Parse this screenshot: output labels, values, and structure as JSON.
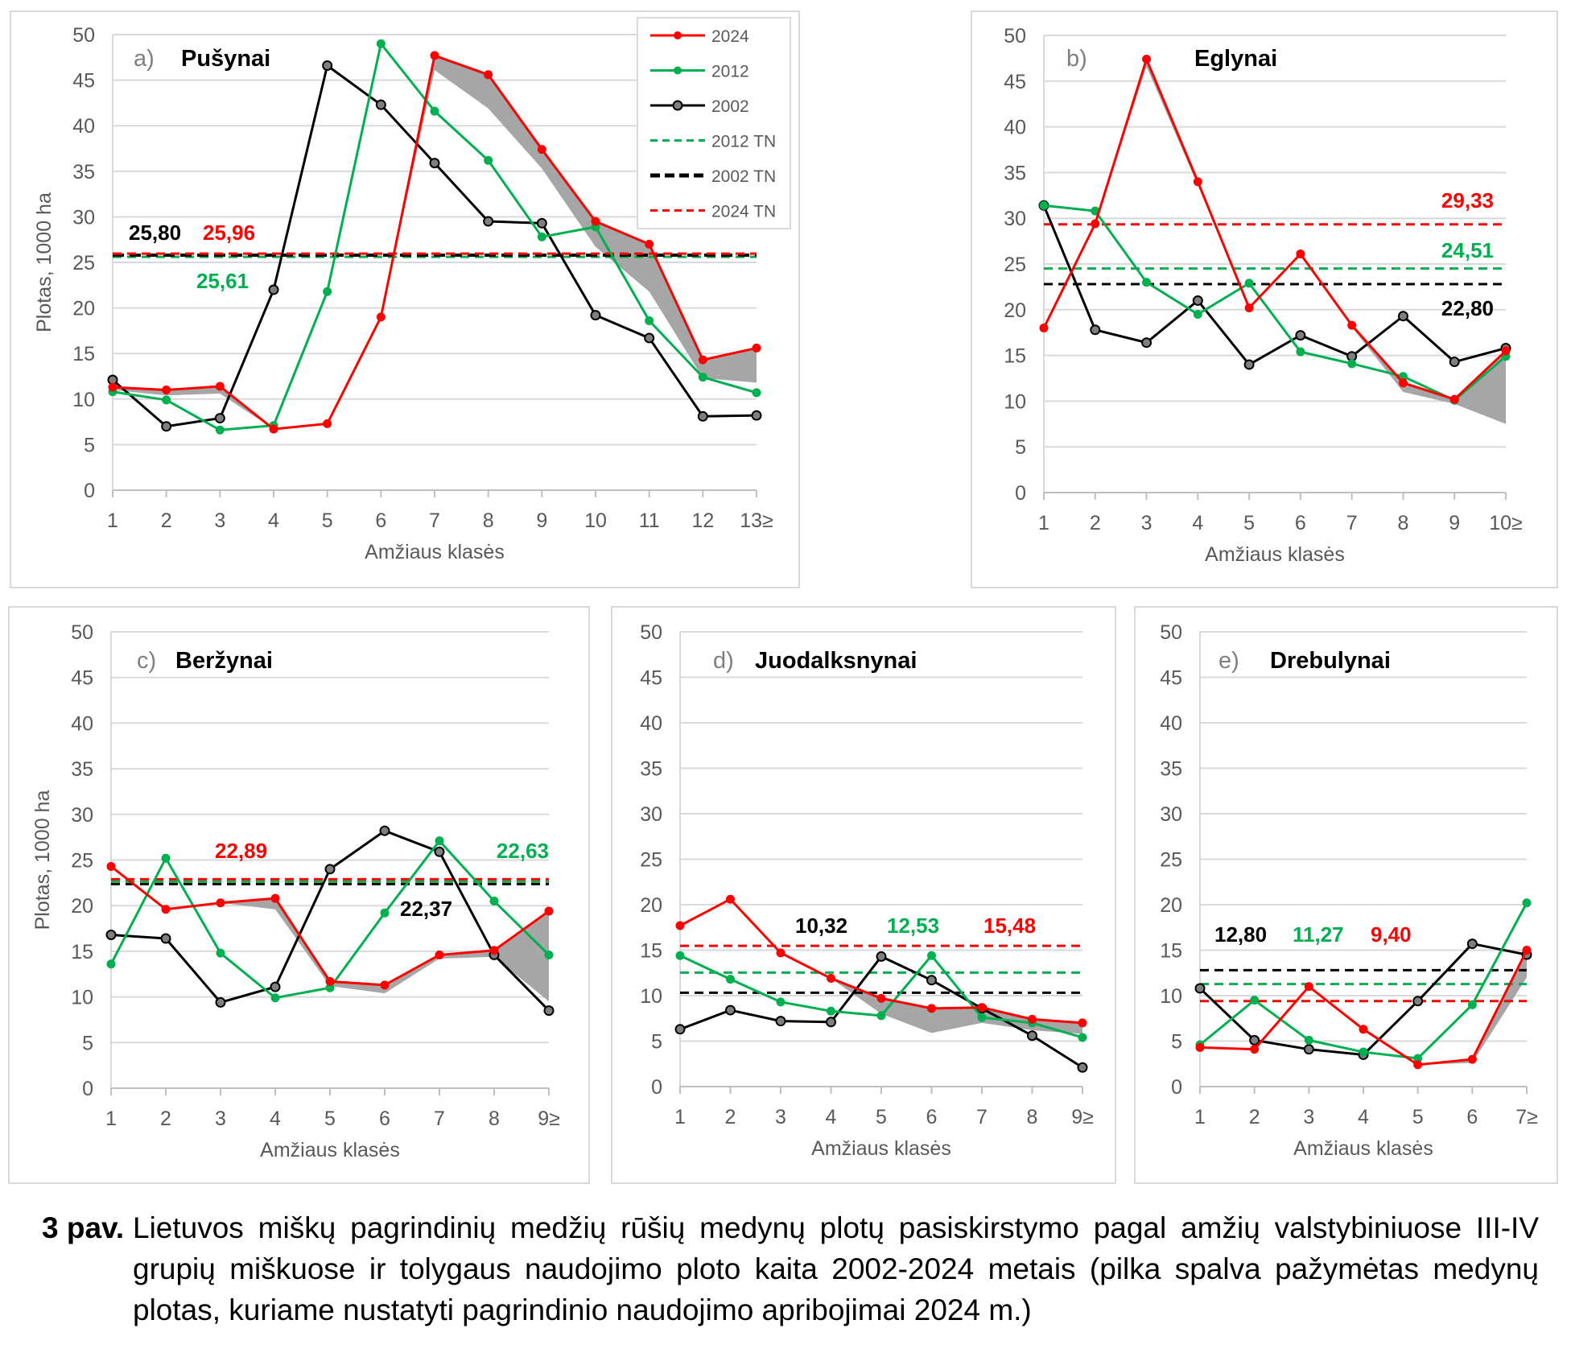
{
  "figure": {
    "caption_number": "3 pav.",
    "caption_text": "Lietuvos miškų pagrindinių medžių rūšių medynų plotų pasiskirstymo pagal amžių valstybiniuose III-IV grupių miškuose ir tolygaus naudojimo ploto kaita 2002-2024 metais (pilka spalva pažymėtas medynų plotas, kuriame nustatyti pagrindinio naudojimo apribojimai 2024 m.)"
  },
  "colors": {
    "s2024": "#ff0000",
    "s2012": "#00b050",
    "s2002": "#000000",
    "restricted_area": "#a6a6a6",
    "grid": "#d9d9d9",
    "axis_text": "#595959",
    "panel_letter": "#7f7f7f"
  },
  "legend": [
    {
      "key": "s2024",
      "label": "2024",
      "style": "solid-dot"
    },
    {
      "key": "s2012",
      "label": "2012",
      "style": "solid-dot"
    },
    {
      "key": "s2002",
      "label": "2002",
      "style": "solid-ring"
    },
    {
      "key": "s2012",
      "label": "2012 TN",
      "style": "dash-thin"
    },
    {
      "key": "s2002",
      "label": "2002 TN",
      "style": "dash-thick"
    },
    {
      "key": "s2024",
      "label": "2024 TN",
      "style": "dash-thin"
    }
  ],
  "chart_data": [
    {
      "id": "a",
      "type": "line",
      "letter": "a)",
      "title": "Pušynai",
      "xlabel": "Amžiaus klasės",
      "ylabel": "Plotas, 1000 ha",
      "ylim": [
        0,
        50
      ],
      "yticks": [
        0,
        5,
        10,
        15,
        20,
        25,
        30,
        35,
        40,
        45,
        50
      ],
      "grid": true,
      "legend": "top-right",
      "categories": [
        "1",
        "2",
        "3",
        "4",
        "5",
        "6",
        "7",
        "8",
        "9",
        "10",
        "11",
        "12",
        "13≥"
      ],
      "series": [
        {
          "key": "s2024",
          "name": "2024",
          "values": [
            11.3,
            11.0,
            11.4,
            6.7,
            7.3,
            19.0,
            47.7,
            45.6,
            37.4,
            29.5,
            27.0,
            14.3,
            15.6
          ]
        },
        {
          "key": "s2012",
          "name": "2012",
          "values": [
            10.8,
            9.9,
            6.6,
            7.1,
            21.8,
            49.0,
            41.6,
            36.2,
            27.8,
            28.9,
            18.6,
            12.4,
            10.7
          ]
        },
        {
          "key": "s2002",
          "name": "2002",
          "values": [
            12.1,
            7.0,
            7.9,
            22.0,
            46.6,
            42.3,
            35.9,
            29.5,
            29.3,
            19.2,
            16.7,
            8.1,
            8.2
          ]
        }
      ],
      "restricted_lower_2024": [
        11.0,
        10.4,
        10.6,
        6.7,
        7.3,
        19.0,
        46.1,
        41.9,
        35.3,
        26.7,
        21.8,
        12.3,
        11.8
      ],
      "tn_lines": [
        {
          "key": "s2012",
          "name": "2012 TN",
          "value": 25.61,
          "label": "25,61"
        },
        {
          "key": "s2002",
          "name": "2002 TN",
          "value": 25.8,
          "label": "25,80"
        },
        {
          "key": "s2024",
          "name": "2024 TN",
          "value": 25.96,
          "label": "25,96"
        }
      ]
    },
    {
      "id": "b",
      "type": "line",
      "letter": "b)",
      "title": "Eglynai",
      "xlabel": "Amžiaus klasės",
      "ylabel": "",
      "ylim": [
        0,
        50
      ],
      "yticks": [
        0,
        5,
        10,
        15,
        20,
        25,
        30,
        35,
        40,
        45,
        50
      ],
      "grid": true,
      "categories": [
        "1",
        "2",
        "3",
        "4",
        "5",
        "6",
        "7",
        "8",
        "9",
        "10≥"
      ],
      "series": [
        {
          "key": "s2024",
          "name": "2024",
          "values": [
            18.0,
            29.4,
            47.4,
            34.0,
            20.2,
            26.1,
            18.3,
            12.0,
            10.2,
            15.5
          ]
        },
        {
          "key": "s2012",
          "name": "2012",
          "values": [
            31.4,
            30.8,
            23.0,
            19.5,
            22.9,
            15.4,
            14.1,
            12.7,
            10.1,
            14.9
          ]
        },
        {
          "key": "s2002",
          "name": "2002",
          "values": [
            31.4,
            17.8,
            16.4,
            21.0,
            14.0,
            17.2,
            14.9,
            19.3,
            14.3,
            15.8
          ]
        }
      ],
      "restricted_lower_2024": [
        18.0,
        29.4,
        46.6,
        33.6,
        20.2,
        26.1,
        18.1,
        11.0,
        9.7,
        7.5
      ],
      "tn_lines": [
        {
          "key": "s2002",
          "name": "2002 TN",
          "value": 22.8,
          "label": "22,80"
        },
        {
          "key": "s2012",
          "name": "2012 TN",
          "value": 24.51,
          "label": "24,51"
        },
        {
          "key": "s2024",
          "name": "2024 TN",
          "value": 29.33,
          "label": "29,33"
        }
      ]
    },
    {
      "id": "c",
      "type": "line",
      "letter": "c)",
      "title": "Beržynai",
      "xlabel": "Amžiaus klasės",
      "ylabel": "Plotas, 1000 ha",
      "ylim": [
        0,
        50
      ],
      "yticks": [
        0,
        5,
        10,
        15,
        20,
        25,
        30,
        35,
        40,
        45,
        50
      ],
      "grid": true,
      "categories": [
        "1",
        "2",
        "3",
        "4",
        "5",
        "6",
        "7",
        "8",
        "9≥"
      ],
      "series": [
        {
          "key": "s2024",
          "name": "2024",
          "values": [
            24.3,
            19.6,
            20.3,
            20.8,
            11.7,
            11.3,
            14.6,
            15.1,
            19.4
          ]
        },
        {
          "key": "s2012",
          "name": "2012",
          "values": [
            13.6,
            25.2,
            14.8,
            9.9,
            11.0,
            19.2,
            27.1,
            20.5,
            14.6
          ]
        },
        {
          "key": "s2002",
          "name": "2002",
          "values": [
            16.8,
            16.4,
            9.4,
            11.1,
            24.0,
            28.2,
            25.9,
            14.6,
            8.5
          ]
        }
      ],
      "restricted_lower_2024": [
        24.3,
        19.6,
        20.3,
        19.6,
        11.2,
        10.4,
        14.2,
        14.4,
        9.5
      ],
      "tn_lines": [
        {
          "key": "s2002",
          "name": "2002 TN",
          "value": 22.37,
          "label": "22,37"
        },
        {
          "key": "s2012",
          "name": "2012 TN",
          "value": 22.63,
          "label": "22,63"
        },
        {
          "key": "s2024",
          "name": "2024 TN",
          "value": 22.89,
          "label": "22,89"
        }
      ]
    },
    {
      "id": "d",
      "type": "line",
      "letter": "d)",
      "title": "Juodalksnynai",
      "xlabel": "Amžiaus klasės",
      "ylabel": "",
      "ylim": [
        0,
        50
      ],
      "yticks": [
        0,
        5,
        10,
        15,
        20,
        25,
        30,
        35,
        40,
        45,
        50
      ],
      "grid": true,
      "categories": [
        "1",
        "2",
        "3",
        "4",
        "5",
        "6",
        "7",
        "8",
        "9≥"
      ],
      "series": [
        {
          "key": "s2024",
          "name": "2024",
          "values": [
            17.7,
            20.6,
            14.7,
            11.9,
            9.7,
            8.6,
            8.7,
            7.4,
            7.0
          ]
        },
        {
          "key": "s2012",
          "name": "2012",
          "values": [
            14.4,
            11.8,
            9.3,
            8.3,
            7.8,
            14.4,
            7.6,
            7.0,
            5.4
          ]
        },
        {
          "key": "s2002",
          "name": "2002",
          "values": [
            6.3,
            8.4,
            7.2,
            7.1,
            14.3,
            11.7,
            8.6,
            5.6,
            2.1
          ]
        }
      ],
      "restricted_lower_2024": [
        17.7,
        20.6,
        14.7,
        11.9,
        8.0,
        5.9,
        7.0,
        6.2,
        5.8
      ],
      "tn_lines": [
        {
          "key": "s2002",
          "name": "2002 TN",
          "value": 10.32,
          "label": "10,32"
        },
        {
          "key": "s2012",
          "name": "2012 TN",
          "value": 12.53,
          "label": "12,53"
        },
        {
          "key": "s2024",
          "name": "2024 TN",
          "value": 15.48,
          "label": "15,48"
        }
      ]
    },
    {
      "id": "e",
      "type": "line",
      "letter": "e)",
      "title": "Drebulynai",
      "xlabel": "Amžiaus klasės",
      "ylabel": "",
      "ylim": [
        0,
        50
      ],
      "yticks": [
        0,
        5,
        10,
        15,
        20,
        25,
        30,
        35,
        40,
        45,
        50
      ],
      "grid": true,
      "categories": [
        "1",
        "2",
        "3",
        "4",
        "5",
        "6",
        "7≥"
      ],
      "series": [
        {
          "key": "s2024",
          "name": "2024",
          "values": [
            4.3,
            4.1,
            11.0,
            6.3,
            2.4,
            3.0,
            15.0
          ]
        },
        {
          "key": "s2012",
          "name": "2012",
          "values": [
            4.6,
            9.5,
            5.1,
            3.8,
            3.1,
            9.0,
            20.2
          ]
        },
        {
          "key": "s2002",
          "name": "2002",
          "values": [
            10.8,
            5.1,
            4.1,
            3.5,
            9.4,
            15.7,
            14.5
          ]
        }
      ],
      "restricted_lower_2024": [
        4.3,
        4.1,
        11.0,
        6.3,
        2.4,
        2.6,
        12.0
      ],
      "tn_lines": [
        {
          "key": "s2002",
          "name": "2002 TN",
          "value": 12.8,
          "label": "12,80"
        },
        {
          "key": "s2012",
          "name": "2012 TN",
          "value": 11.27,
          "label": "11,27"
        },
        {
          "key": "s2024",
          "name": "2024 TN",
          "value": 9.4,
          "label": "9,40"
        }
      ]
    }
  ]
}
